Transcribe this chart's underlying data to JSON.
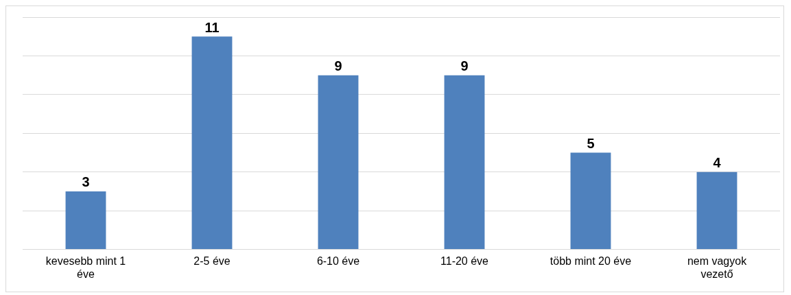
{
  "chart_data": {
    "type": "bar",
    "categories": [
      "kevesebb mint 1 éve",
      "2-5 éve",
      "6-10 éve",
      "11-20 éve",
      "több mint 20 éve",
      "nem vagyok vezető"
    ],
    "values": [
      3,
      11,
      9,
      9,
      5,
      4
    ],
    "color": "#4f81bd",
    "ylim": [
      0,
      12
    ],
    "yticks": [
      {
        "value": 0,
        "label": null
      },
      {
        "value": 2,
        "label": null
      },
      {
        "value": 4,
        "label": null
      },
      {
        "value": 6,
        "label": null
      },
      {
        "value": 8,
        "label": null
      },
      {
        "value": 10,
        "label": null
      },
      {
        "value": 12,
        "label": null
      }
    ],
    "grid": "y",
    "tick_labels": "x",
    "data_labels": true,
    "legend": false
  }
}
